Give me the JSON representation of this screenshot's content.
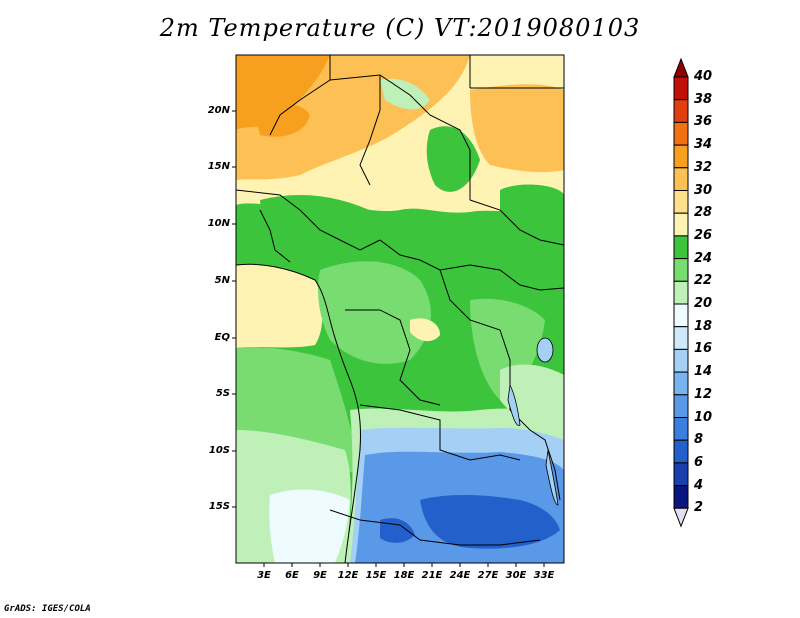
{
  "title": "2m Temperature (C) VT:2019080103",
  "footer": "GrADS: IGES/COLA",
  "latitude_labels": [
    "20N",
    "15N",
    "10N",
    "5N",
    "EQ",
    "5S",
    "10S",
    "15S"
  ],
  "longitude_labels": [
    "3E",
    "6E",
    "9E",
    "12E",
    "15E",
    "18E",
    "21E",
    "24E",
    "27E",
    "30E",
    "33E"
  ],
  "colorbar": {
    "levels": [
      "2",
      "4",
      "6",
      "8",
      "10",
      "12",
      "14",
      "16",
      "18",
      "20",
      "22",
      "24",
      "26",
      "28",
      "30",
      "32",
      "34",
      "36",
      "38",
      "40"
    ],
    "colors": [
      "#e6ddf2",
      "#0a1680",
      "#1a40b0",
      "#2460cc",
      "#3a7ee0",
      "#5a98e8",
      "#7ab4f0",
      "#a4d0f5",
      "#cfe8fa",
      "#eefcff",
      "#bff0b8",
      "#78dc70",
      "#3cc43c",
      "#fff3b4",
      "#ffe08a",
      "#fcc055",
      "#f7a020",
      "#f27010",
      "#e04010",
      "#c01008",
      "#900000"
    ]
  },
  "colors": {
    "very_hot": "#f7a020",
    "hot": "#fcc055",
    "warm": "#ffe08a",
    "mild": "#fff3b4",
    "green_dark": "#3cc43c",
    "green_mid": "#78dc70",
    "green_light": "#bff0b8",
    "cool": "#eefcff",
    "cool_blue": "#a4d0f5",
    "blue": "#5a98e8",
    "blue_dark": "#2460cc",
    "border": "#000000"
  }
}
